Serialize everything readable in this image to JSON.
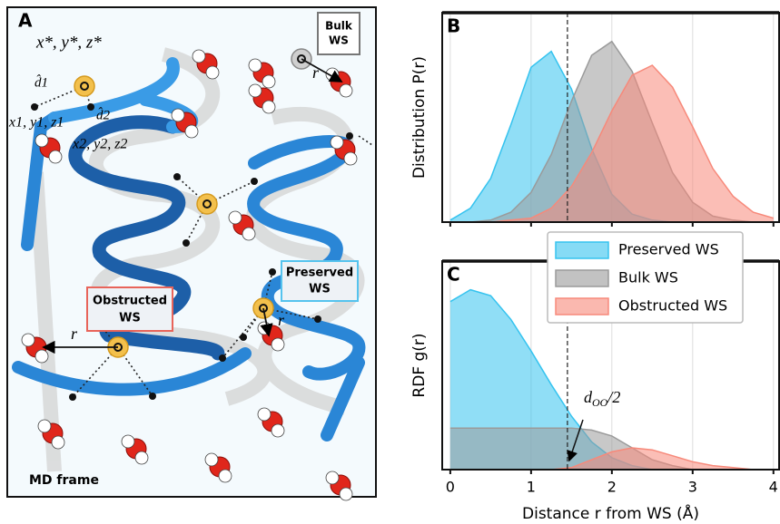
{
  "panel_a": {
    "panel": "A",
    "bulk_label": [
      "Bulk",
      "WS"
    ],
    "coord_star": "x*, y*, z*",
    "d1": "d̂1",
    "d2": "d̂2",
    "coord1": "x1, y1, z1",
    "coord2": "x2, y2, z2",
    "r_vector": "r⃗",
    "preserved_label": [
      "Preserved",
      "WS"
    ],
    "obstructed_label": [
      "Obstructed",
      "WS"
    ],
    "frame_label": "MD frame"
  },
  "chart_data": [
    {
      "type": "area",
      "panel": "B",
      "ylabel": "Distribution P(r)",
      "xlim": [
        -0.1,
        4.07
      ],
      "ylim": [
        0,
        1
      ],
      "xticks": [
        0,
        1,
        2,
        3,
        4
      ],
      "show_xtick_labels": false,
      "grid": true,
      "vline": 1.45,
      "x": [
        0,
        0.25,
        0.5,
        0.75,
        1,
        1.25,
        1.5,
        1.75,
        2,
        2.25,
        2.5,
        2.75,
        3,
        3.25,
        3.5,
        3.75,
        4
      ],
      "series": [
        {
          "name": "Preserved WS",
          "color": "#35c3ef",
          "values": [
            0.01,
            0.07,
            0.22,
            0.49,
            0.78,
            0.86,
            0.67,
            0.37,
            0.14,
            0.04,
            0.01,
            0,
            0,
            0,
            0,
            0,
            0
          ]
        },
        {
          "name": "Bulk WS",
          "color": "#9a9a9a",
          "values": [
            0,
            0,
            0.01,
            0.05,
            0.15,
            0.34,
            0.61,
            0.84,
            0.91,
            0.76,
            0.5,
            0.25,
            0.1,
            0.03,
            0.01,
            0,
            0
          ]
        },
        {
          "name": "Obstructed WS",
          "color": "#f7897a",
          "values": [
            0,
            0,
            0,
            0.01,
            0.02,
            0.07,
            0.18,
            0.35,
            0.56,
            0.74,
            0.79,
            0.68,
            0.48,
            0.27,
            0.13,
            0.05,
            0.02
          ]
        }
      ]
    },
    {
      "type": "area",
      "panel": "C",
      "ylabel": "RDF g(r)",
      "xlabel": "Distance r from WS (Å)",
      "xlim": [
        -0.1,
        4.07
      ],
      "ylim": [
        0,
        1
      ],
      "xticks": [
        0,
        1,
        2,
        3,
        4
      ],
      "show_xtick_labels": true,
      "grid": true,
      "vline": 1.45,
      "annotation": {
        "base": "d",
        "sub": "OO",
        "rest": "/2"
      },
      "x": [
        0,
        0.25,
        0.5,
        0.75,
        1,
        1.25,
        1.5,
        1.75,
        2,
        2.25,
        2.5,
        2.75,
        3,
        3.25,
        3.5,
        3.75,
        4
      ],
      "series": [
        {
          "color": "#35c3ef",
          "values": [
            0.85,
            0.91,
            0.88,
            0.76,
            0.6,
            0.43,
            0.27,
            0.14,
            0.06,
            0.02,
            0,
            0,
            0,
            0,
            0,
            0,
            0
          ]
        },
        {
          "color": "#9a9a9a",
          "values": [
            0.21,
            0.21,
            0.21,
            0.21,
            0.21,
            0.21,
            0.21,
            0.2,
            0.17,
            0.11,
            0.05,
            0.02,
            0,
            0,
            0,
            0,
            0
          ]
        },
        {
          "color": "#f7897a",
          "values": [
            0,
            0,
            0,
            0,
            0,
            0,
            0.01,
            0.05,
            0.09,
            0.11,
            0.1,
            0.07,
            0.04,
            0.02,
            0.01,
            0,
            0
          ]
        }
      ]
    }
  ]
}
